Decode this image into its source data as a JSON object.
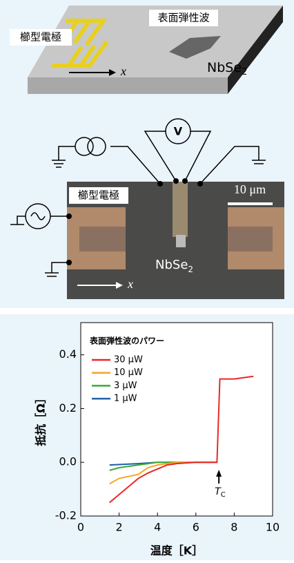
{
  "diagram": {
    "saw_label": "表面弾性波",
    "electrode_label": "櫛型電極",
    "sample_label": "NbSe",
    "sample_sub": "2",
    "x_label": "x"
  },
  "device": {
    "voltmeter": "V",
    "scale_bar": "10 μm",
    "electrode_label": "櫛型電極",
    "sample_label": "NbSe",
    "sample_sub": "2",
    "x_label": "x"
  },
  "chart_data": {
    "type": "line",
    "xlabel": "温度［K］",
    "ylabel": "抵抗［Ω］",
    "legend_title": "表面弾性波のパワー",
    "legend": "upper-left",
    "xlim": [
      0,
      10
    ],
    "ylim": [
      -0.2,
      0.52
    ],
    "xticks": [
      0,
      2,
      4,
      6,
      8,
      10
    ],
    "yticks": [
      -0.2,
      {
        "value": 0,
        "label": "0.0"
      },
      0.2,
      0.4
    ],
    "annotation": {
      "text": "T",
      "sub": "C",
      "x": 7.2
    },
    "series": [
      {
        "name": "30 μW",
        "color": "#e8272a",
        "x": [
          1.5,
          2,
          2.5,
          3,
          3.5,
          4,
          4.5,
          5,
          6,
          7.1,
          7.25,
          8,
          9
        ],
        "values": [
          -0.15,
          -0.12,
          -0.09,
          -0.06,
          -0.04,
          -0.025,
          -0.01,
          -0.005,
          0,
          0,
          0.31,
          0.31,
          0.32
        ]
      },
      {
        "name": "10 μW",
        "color": "#f5a623",
        "x": [
          1.5,
          2,
          3,
          3.5,
          4,
          5,
          6,
          7.1
        ],
        "values": [
          -0.08,
          -0.06,
          -0.045,
          -0.02,
          -0.01,
          0,
          0,
          0
        ]
      },
      {
        "name": "3 μW",
        "color": "#3aaa35",
        "x": [
          1.5,
          2,
          3,
          4,
          5,
          6,
          7.1
        ],
        "values": [
          -0.03,
          -0.02,
          -0.01,
          0,
          0,
          0,
          0
        ]
      },
      {
        "name": "1 μW",
        "color": "#1f5fa8",
        "x": [
          1.5,
          3,
          4,
          5,
          6,
          7.1
        ],
        "values": [
          -0.01,
          -0.005,
          0,
          0,
          0,
          0
        ]
      }
    ]
  }
}
